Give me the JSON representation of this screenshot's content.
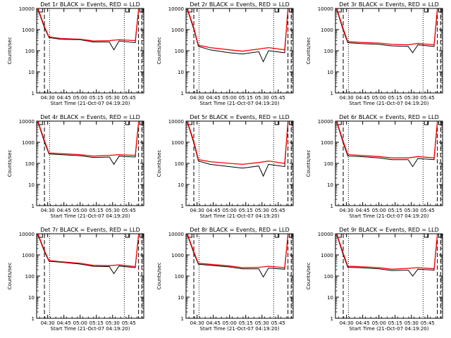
{
  "chart_data": [
    {
      "type": "line",
      "title": "Det 1r BLACK = Events, RED = LLD",
      "xlabel": "Start Time (21-Oct-07 04:19:20)",
      "ylabel": "Counts/sec",
      "x_ticks": [
        "04:30",
        "04:45",
        "05:00",
        "05:15",
        "05:30",
        "05:45"
      ],
      "y_ticks": [
        "1",
        "10",
        "100",
        "1000",
        "10000"
      ],
      "y_scale": "log",
      "ylim": [
        1,
        10000
      ],
      "series": [
        {
          "color": "#000000",
          "values": [
            [
              4.35,
              9000
            ],
            [
              4.45,
              1200
            ],
            [
              4.52,
              420
            ],
            [
              4.7,
              350
            ],
            [
              5.0,
              330
            ],
            [
              5.2,
              260
            ],
            [
              5.45,
              260
            ],
            [
              5.52,
              110
            ],
            [
              5.6,
              290
            ],
            [
              5.85,
              240
            ],
            [
              5.9,
              8000
            ]
          ]
        },
        {
          "color": "#ff0000",
          "values": [
            [
              4.35,
              10000
            ],
            [
              4.45,
              1400
            ],
            [
              4.52,
              450
            ],
            [
              4.7,
              380
            ],
            [
              5.0,
              350
            ],
            [
              5.2,
              290
            ],
            [
              5.45,
              300
            ],
            [
              5.6,
              330
            ],
            [
              5.85,
              300
            ],
            [
              5.9,
              9000
            ]
          ]
        }
      ]
    },
    {
      "type": "line",
      "title": "Det 2r BLACK = Events, RED = LLD",
      "xlabel": "Start Time (21-Oct-07 04:19:20)",
      "ylabel": "Counts/sec",
      "x_ticks": [
        "04:30",
        "04:45",
        "05:00",
        "05:15",
        "05:30",
        "05:45"
      ],
      "y_ticks": [
        "1",
        "10",
        "100",
        "1000",
        "10000"
      ],
      "y_scale": "log",
      "ylim": [
        1,
        10000
      ],
      "series": [
        {
          "color": "#000000",
          "values": [
            [
              4.35,
              9000
            ],
            [
              4.45,
              1000
            ],
            [
              4.52,
              160
            ],
            [
              4.7,
              110
            ],
            [
              5.0,
              80
            ],
            [
              5.2,
              70
            ],
            [
              5.45,
              90
            ],
            [
              5.52,
              30
            ],
            [
              5.6,
              100
            ],
            [
              5.85,
              80
            ],
            [
              5.9,
              8000
            ]
          ]
        },
        {
          "color": "#ff0000",
          "values": [
            [
              4.35,
              10000
            ],
            [
              4.45,
              1200
            ],
            [
              4.52,
              180
            ],
            [
              4.7,
              140
            ],
            [
              5.0,
              110
            ],
            [
              5.2,
              95
            ],
            [
              5.45,
              120
            ],
            [
              5.6,
              140
            ],
            [
              5.85,
              110
            ],
            [
              5.9,
              9000
            ]
          ]
        }
      ]
    },
    {
      "type": "line",
      "title": "Det 3r BLACK = Events, RED = LLD",
      "xlabel": "Start Time (21-Oct-07 04:19:20)",
      "ylabel": "Counts/sec",
      "x_ticks": [
        "04:30",
        "04:45",
        "05:00",
        "05:15",
        "05:30",
        "05:45"
      ],
      "y_ticks": [
        "1",
        "10",
        "100",
        "1000",
        "10000"
      ],
      "y_scale": "log",
      "ylim": [
        1,
        10000
      ],
      "series": [
        {
          "color": "#000000",
          "values": [
            [
              4.35,
              9000
            ],
            [
              4.45,
              900
            ],
            [
              4.52,
              240
            ],
            [
              4.7,
              220
            ],
            [
              5.0,
              200
            ],
            [
              5.2,
              170
            ],
            [
              5.45,
              160
            ],
            [
              5.52,
              80
            ],
            [
              5.6,
              190
            ],
            [
              5.85,
              160
            ],
            [
              5.9,
              8000
            ]
          ]
        },
        {
          "color": "#ff0000",
          "values": [
            [
              4.35,
              10000
            ],
            [
              4.45,
              1100
            ],
            [
              4.52,
              270
            ],
            [
              4.7,
              250
            ],
            [
              5.0,
              230
            ],
            [
              5.2,
              200
            ],
            [
              5.45,
              190
            ],
            [
              5.6,
              220
            ],
            [
              5.85,
              190
            ],
            [
              5.9,
              9000
            ]
          ]
        }
      ]
    },
    {
      "type": "line",
      "title": "Det 4r BLACK = Events, RED = LLD",
      "xlabel": "Start Time (21-Oct-07 04:19:20)",
      "ylabel": "Counts/sec",
      "x_ticks": [
        "04:30",
        "04:45",
        "05:00",
        "05:15",
        "05:30",
        "05:45"
      ],
      "y_ticks": [
        "1",
        "10",
        "100",
        "1000",
        "10000"
      ],
      "y_scale": "log",
      "ylim": [
        1,
        10000
      ],
      "series": [
        {
          "color": "#000000",
          "values": [
            [
              4.35,
              9000
            ],
            [
              4.45,
              1000
            ],
            [
              4.52,
              280
            ],
            [
              4.7,
              260
            ],
            [
              5.0,
              230
            ],
            [
              5.2,
              190
            ],
            [
              5.45,
              200
            ],
            [
              5.52,
              90
            ],
            [
              5.6,
              220
            ],
            [
              5.85,
              200
            ],
            [
              5.9,
              8000
            ]
          ]
        },
        {
          "color": "#ff0000",
          "values": [
            [
              4.35,
              10000
            ],
            [
              4.45,
              1200
            ],
            [
              4.52,
              310
            ],
            [
              4.7,
              290
            ],
            [
              5.0,
              260
            ],
            [
              5.2,
              220
            ],
            [
              5.45,
              240
            ],
            [
              5.6,
              260
            ],
            [
              5.85,
              240
            ],
            [
              5.9,
              9000
            ]
          ]
        }
      ]
    },
    {
      "type": "line",
      "title": "Det 5r BLACK = Events, RED = LLD",
      "xlabel": "Start Time (21-Oct-07 04:19:20)",
      "ylabel": "Counts/sec",
      "x_ticks": [
        "04:30",
        "04:45",
        "05:00",
        "05:15",
        "05:30",
        "05:45"
      ],
      "y_ticks": [
        "1",
        "10",
        "100",
        "1000",
        "10000"
      ],
      "y_scale": "log",
      "ylim": [
        1,
        10000
      ],
      "series": [
        {
          "color": "#000000",
          "values": [
            [
              4.35,
              9000
            ],
            [
              4.45,
              900
            ],
            [
              4.52,
              130
            ],
            [
              4.7,
              90
            ],
            [
              5.0,
              70
            ],
            [
              5.2,
              60
            ],
            [
              5.45,
              75
            ],
            [
              5.52,
              25
            ],
            [
              5.6,
              90
            ],
            [
              5.85,
              70
            ],
            [
              5.9,
              8000
            ]
          ]
        },
        {
          "color": "#ff0000",
          "values": [
            [
              4.35,
              10000
            ],
            [
              4.45,
              1100
            ],
            [
              4.52,
              150
            ],
            [
              4.7,
              120
            ],
            [
              5.0,
              100
            ],
            [
              5.2,
              90
            ],
            [
              5.45,
              110
            ],
            [
              5.6,
              130
            ],
            [
              5.85,
              100
            ],
            [
              5.9,
              9000
            ]
          ]
        }
      ]
    },
    {
      "type": "line",
      "title": "Det 6r BLACK = Events, RED = LLD",
      "xlabel": "Start Time (21-Oct-07 04:19:20)",
      "ylabel": "Counts/sec",
      "x_ticks": [
        "04:30",
        "04:45",
        "05:00",
        "05:15",
        "05:30",
        "05:45"
      ],
      "y_ticks": [
        "1",
        "10",
        "100",
        "1000",
        "10000"
      ],
      "y_scale": "log",
      "ylim": [
        1,
        10000
      ],
      "series": [
        {
          "color": "#000000",
          "values": [
            [
              4.35,
              9000
            ],
            [
              4.45,
              900
            ],
            [
              4.52,
              220
            ],
            [
              4.7,
              210
            ],
            [
              5.0,
              180
            ],
            [
              5.2,
              150
            ],
            [
              5.45,
              150
            ],
            [
              5.52,
              70
            ],
            [
              5.6,
              170
            ],
            [
              5.85,
              150
            ],
            [
              5.9,
              8000
            ]
          ]
        },
        {
          "color": "#ff0000",
          "values": [
            [
              4.35,
              10000
            ],
            [
              4.45,
              1100
            ],
            [
              4.52,
              260
            ],
            [
              4.7,
              240
            ],
            [
              5.0,
              210
            ],
            [
              5.2,
              180
            ],
            [
              5.45,
              180
            ],
            [
              5.6,
              210
            ],
            [
              5.85,
              180
            ],
            [
              5.9,
              9000
            ]
          ]
        }
      ]
    },
    {
      "type": "line",
      "title": "Det 7r BLACK = Events, RED = LLD",
      "xlabel": "Start Time (21-Oct-07 04:19:20)",
      "ylabel": "Counts/sec",
      "x_ticks": [
        "04:30",
        "04:45",
        "05:00",
        "05:15",
        "05:30",
        "05:45"
      ],
      "y_ticks": [
        "1",
        "10",
        "100",
        "1000",
        "10000"
      ],
      "y_scale": "log",
      "ylim": [
        1,
        10000
      ],
      "series": [
        {
          "color": "#000000",
          "values": [
            [
              4.35,
              9000
            ],
            [
              4.45,
              1400
            ],
            [
              4.52,
              500
            ],
            [
              4.7,
              450
            ],
            [
              5.0,
              370
            ],
            [
              5.2,
              290
            ],
            [
              5.45,
              280
            ],
            [
              5.52,
              130
            ],
            [
              5.6,
              300
            ],
            [
              5.85,
              250
            ],
            [
              5.9,
              8000
            ]
          ]
        },
        {
          "color": "#ff0000",
          "values": [
            [
              4.35,
              10000
            ],
            [
              4.45,
              1600
            ],
            [
              4.52,
              540
            ],
            [
              4.7,
              480
            ],
            [
              5.0,
              400
            ],
            [
              5.2,
              320
            ],
            [
              5.45,
              310
            ],
            [
              5.6,
              340
            ],
            [
              5.85,
              280
            ],
            [
              5.9,
              9000
            ]
          ]
        }
      ]
    },
    {
      "type": "line",
      "title": "Det 8r BLACK = Events, RED = LLD",
      "xlabel": "Start Time (21-Oct-07 04:19:20)",
      "ylabel": "Counts/sec",
      "x_ticks": [
        "04:30",
        "04:45",
        "05:00",
        "05:15",
        "05:30",
        "05:45"
      ],
      "y_ticks": [
        "1",
        "10",
        "100",
        "1000",
        "10000"
      ],
      "y_scale": "log",
      "ylim": [
        1,
        10000
      ],
      "series": [
        {
          "color": "#000000",
          "values": [
            [
              4.35,
              9000
            ],
            [
              4.45,
              1200
            ],
            [
              4.52,
              360
            ],
            [
              4.7,
              320
            ],
            [
              5.0,
              270
            ],
            [
              5.2,
              220
            ],
            [
              5.45,
              220
            ],
            [
              5.52,
              90
            ],
            [
              5.6,
              240
            ],
            [
              5.85,
              210
            ],
            [
              5.9,
              8000
            ]
          ]
        },
        {
          "color": "#ff0000",
          "values": [
            [
              4.35,
              10000
            ],
            [
              4.45,
              1400
            ],
            [
              4.52,
              400
            ],
            [
              4.7,
              360
            ],
            [
              5.0,
              300
            ],
            [
              5.2,
              250
            ],
            [
              5.45,
              260
            ],
            [
              5.6,
              290
            ],
            [
              5.85,
              250
            ],
            [
              5.9,
              9000
            ]
          ]
        }
      ]
    },
    {
      "type": "line",
      "title": "Det 9r BLACK = Events, RED = LLD",
      "xlabel": "Start Time (21-Oct-07 04:19:20)",
      "ylabel": "Counts/sec",
      "x_ticks": [
        "04:30",
        "04:45",
        "05:00",
        "05:15",
        "05:30",
        "05:45"
      ],
      "y_ticks": [
        "1",
        "10",
        "100",
        "1000",
        "10000"
      ],
      "y_scale": "log",
      "ylim": [
        1,
        10000
      ],
      "series": [
        {
          "color": "#000000",
          "values": [
            [
              4.35,
              9000
            ],
            [
              4.45,
              1000
            ],
            [
              4.52,
              260
            ],
            [
              4.7,
              250
            ],
            [
              5.0,
              220
            ],
            [
              5.2,
              180
            ],
            [
              5.45,
              190
            ],
            [
              5.52,
              100
            ],
            [
              5.6,
              210
            ],
            [
              5.85,
              190
            ],
            [
              5.9,
              8000
            ]
          ]
        },
        {
          "color": "#ff0000",
          "values": [
            [
              4.35,
              10000
            ],
            [
              4.45,
              1200
            ],
            [
              4.52,
              290
            ],
            [
              4.7,
              280
            ],
            [
              5.0,
              250
            ],
            [
              5.2,
              210
            ],
            [
              5.45,
              230
            ],
            [
              5.6,
              250
            ],
            [
              5.85,
              220
            ],
            [
              5.9,
              9000
            ]
          ]
        }
      ]
    }
  ]
}
